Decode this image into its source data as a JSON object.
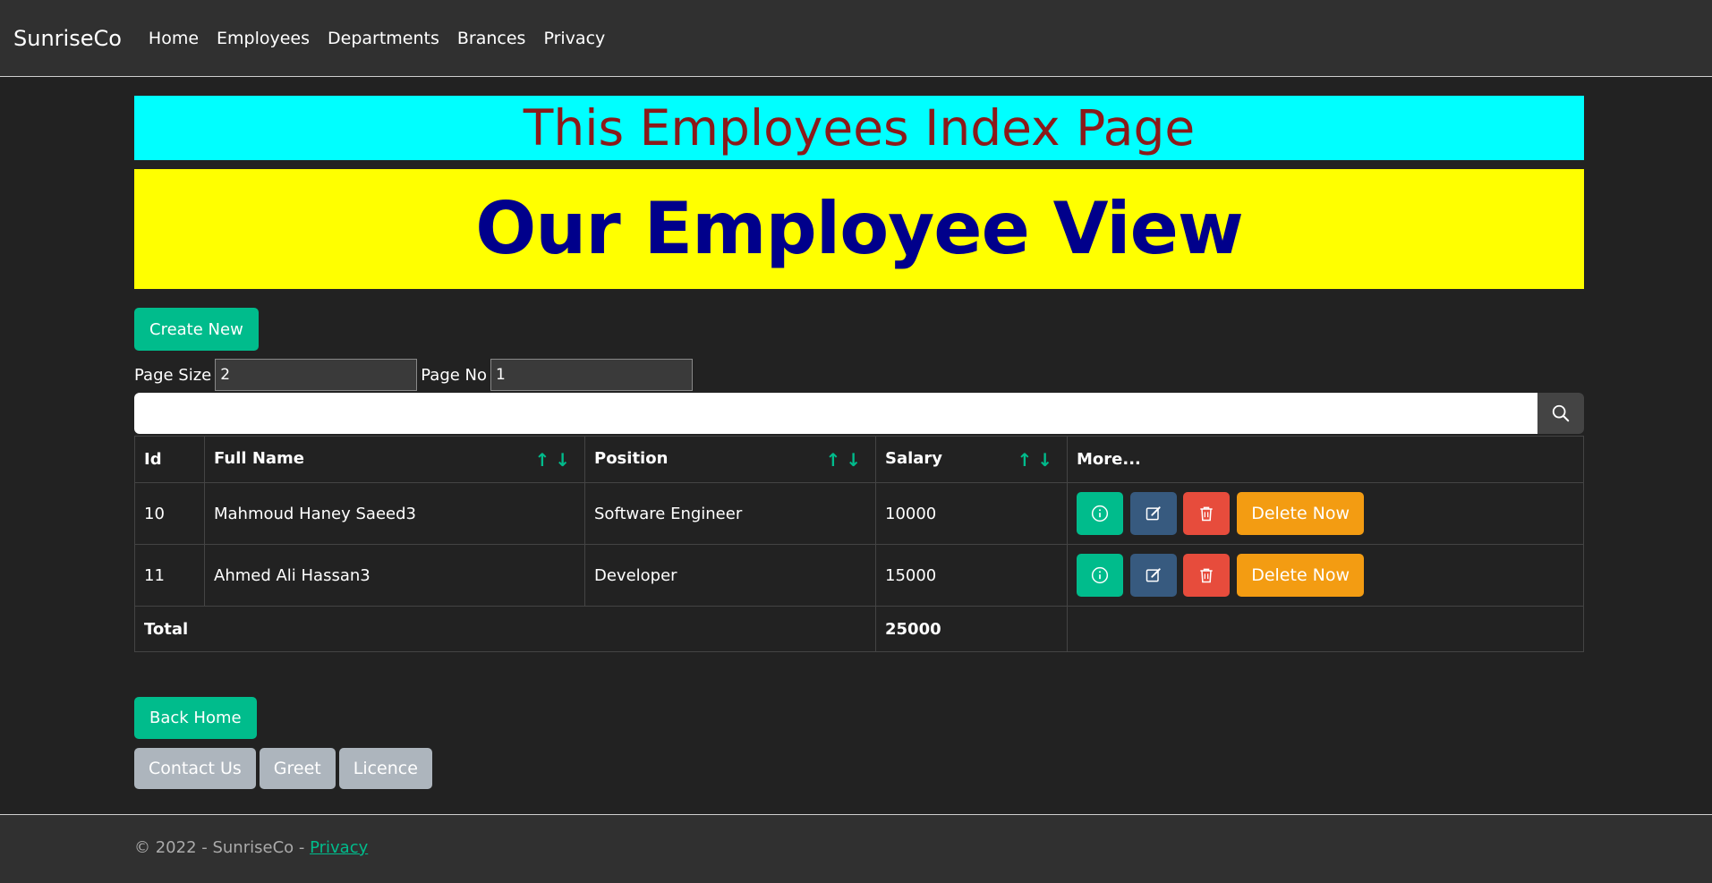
{
  "nav": {
    "brand": "SunriseCo",
    "links": [
      "Home",
      "Employees",
      "Departments",
      "Brances",
      "Privacy"
    ]
  },
  "banners": {
    "index_title": "This Employees Index Page",
    "view_title": "Our Employee View"
  },
  "toolbar": {
    "create_label": "Create New",
    "page_size_label": "Page Size",
    "page_size_value": "2",
    "page_no_label": "Page No",
    "page_no_value": "1",
    "search_value": ""
  },
  "table": {
    "headers": [
      "Id",
      "Full Name",
      "Position",
      "Salary",
      "More..."
    ],
    "sort_up": "↑",
    "sort_down": "↓",
    "rows": [
      {
        "id": "10",
        "full_name": "Mahmoud Haney Saeed3",
        "position": "Software Engineer",
        "salary": "10000"
      },
      {
        "id": "11",
        "full_name": "Ahmed Ali Hassan3",
        "position": "Developer",
        "salary": "15000"
      }
    ],
    "delete_now_label": "Delete Now",
    "total_label": "Total",
    "total_value": "25000"
  },
  "actions": {
    "back_home_label": "Back Home",
    "contact_label": "Contact Us",
    "greet_label": "Greet",
    "licence_label": "Licence"
  },
  "footer": {
    "copyright": "© 2022 - SunriseCo - ",
    "privacy_link": "Privacy"
  },
  "icons": {
    "search": "search-icon",
    "info": "info-icon",
    "edit": "edit-icon",
    "delete": "trash-icon"
  },
  "colors": {
    "accent_green": "#00bc8c",
    "edit_blue": "#375a7f",
    "delete_red": "#e74c3c",
    "warning_orange": "#f39c12",
    "cyan_banner": "#00ffff",
    "yellow_banner": "#ffff00"
  }
}
